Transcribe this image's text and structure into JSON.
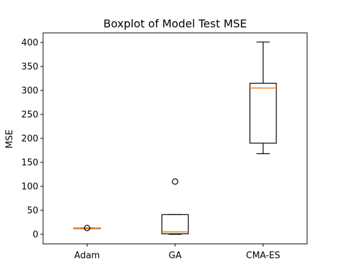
{
  "chart_data": {
    "type": "boxplot",
    "title": "Boxplot of Model Test MSE",
    "xlabel": "",
    "ylabel": "MSE",
    "ylim": [
      -20,
      420
    ],
    "yticks": [
      0,
      50,
      100,
      150,
      200,
      250,
      300,
      350,
      400
    ],
    "grid": false,
    "categories": [
      "Adam",
      "GA",
      "CMA-ES"
    ],
    "boxes": [
      {
        "category": "Adam",
        "whisker_low": 12,
        "q1": 12,
        "median": 12.5,
        "q3": 13,
        "whisker_high": 13,
        "outliers": [
          13
        ]
      },
      {
        "category": "GA",
        "whisker_low": 0,
        "q1": 1,
        "median": 5,
        "q3": 41,
        "whisker_high": 41,
        "outliers": [
          110
        ]
      },
      {
        "category": "CMA-ES",
        "whisker_low": 168,
        "q1": 190,
        "median": 305,
        "q3": 315,
        "whisker_high": 401,
        "outliers": []
      }
    ],
    "colors": {
      "box": "#000000",
      "median": "#ff7f0e",
      "axis": "#000000"
    }
  }
}
